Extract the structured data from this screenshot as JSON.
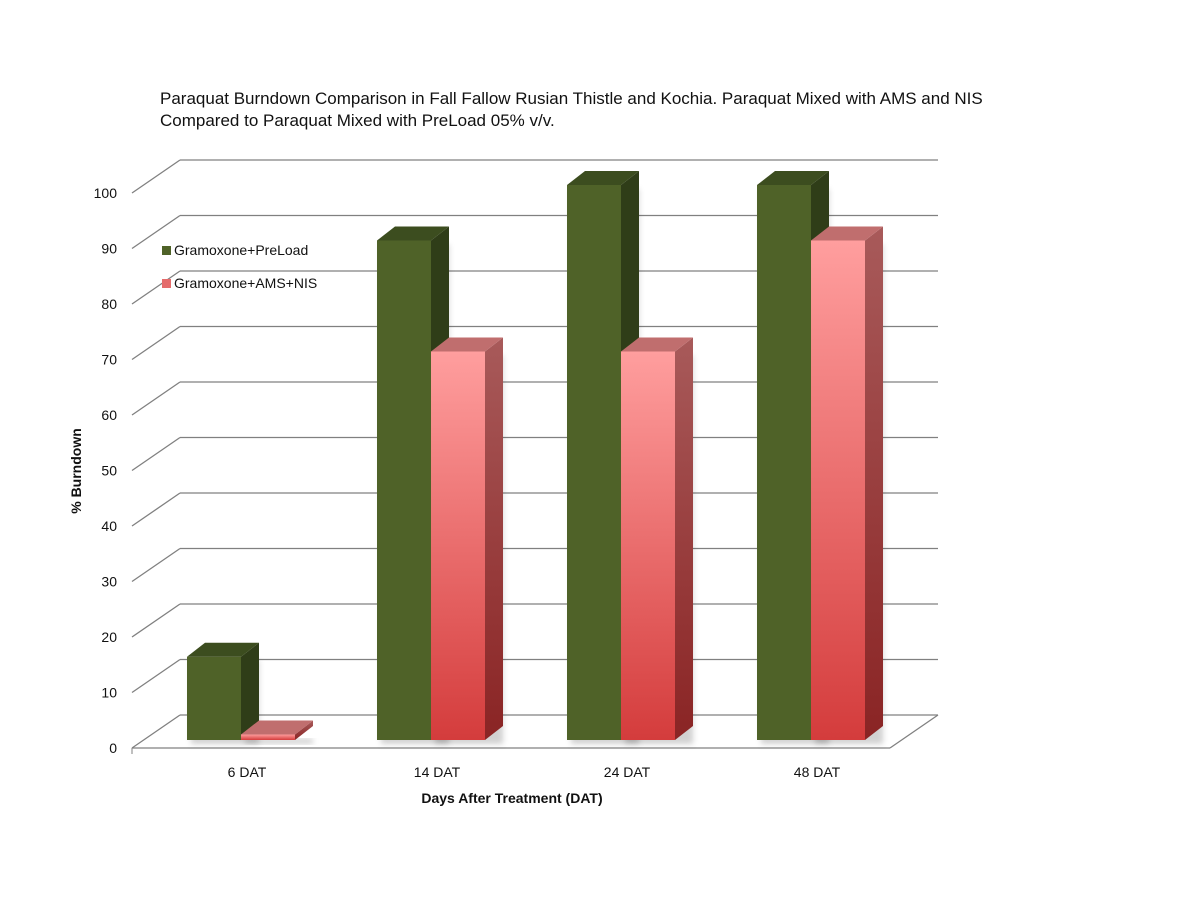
{
  "chart_data": {
    "type": "bar",
    "title_lines": [
      "Paraquat Burndown Comparison in Fall Fallow Rusian Thistle and Kochia.  Paraquat Mixed with AMS and NIS",
      "Compared to Paraquat Mixed with PreLoad 05% v/v."
    ],
    "xlabel": "Days After Treatment (DAT)",
    "ylabel": "% Burndown",
    "categories": [
      "6 DAT",
      "14 DAT",
      "24 DAT",
      "48 DAT"
    ],
    "ylim": [
      0,
      100
    ],
    "yticks": [
      0,
      10,
      20,
      30,
      40,
      50,
      60,
      70,
      80,
      90,
      100
    ],
    "grid": true,
    "legend_position": "top-left",
    "series": [
      {
        "name": "Gramoxone+PreLoad",
        "values": [
          15,
          90,
          100,
          100
        ],
        "color": "#4f6228"
      },
      {
        "name": "Gramoxone+AMS+NIS",
        "values": [
          1,
          70,
          70,
          90
        ],
        "color": "#e46c6c"
      }
    ]
  }
}
